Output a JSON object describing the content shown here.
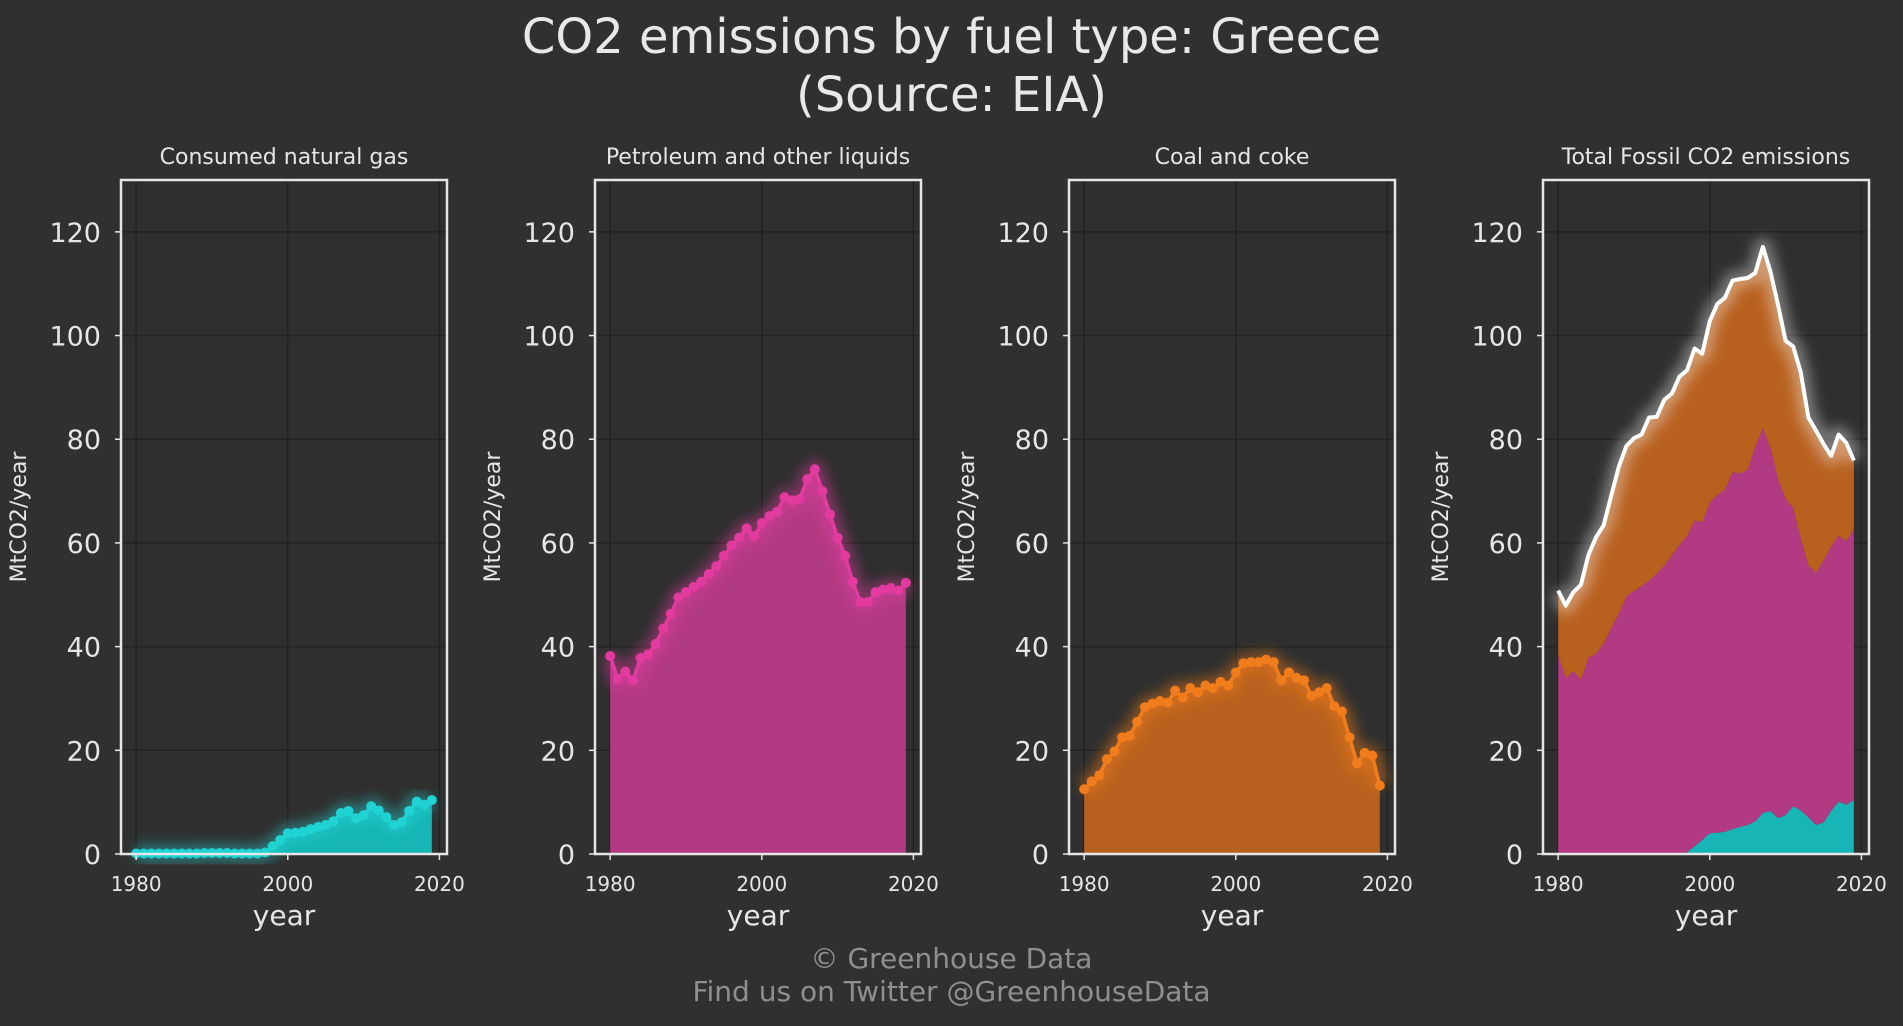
{
  "title": {
    "line1": "CO2 emissions by fuel type: Greece",
    "line2": "(Source: EIA)"
  },
  "footer": {
    "line1": "© Greenhouse Data",
    "line2": "Find us on Twitter @GreenhouseData"
  },
  "colors": {
    "background": "#303030",
    "gas": "#1fd3d3",
    "petroleum": "#e33aa0",
    "coal": "#f07c1c",
    "total": "#ffffff"
  },
  "chart_data": [
    {
      "type": "area",
      "title": "Consumed natural gas",
      "xlabel": "year",
      "ylabel": "MtCO2/year",
      "xlim": [
        1978,
        2021
      ],
      "ylim": [
        0,
        130
      ],
      "xticks": [
        1980,
        2000,
        2020
      ],
      "yticks": [
        0,
        20,
        40,
        60,
        80,
        100,
        120
      ],
      "grid": true,
      "x": [
        1980,
        1981,
        1982,
        1983,
        1984,
        1985,
        1986,
        1987,
        1988,
        1989,
        1990,
        1991,
        1992,
        1993,
        1994,
        1995,
        1996,
        1997,
        1998,
        1999,
        2000,
        2001,
        2002,
        2003,
        2004,
        2005,
        2006,
        2007,
        2008,
        2009,
        2010,
        2011,
        2012,
        2013,
        2014,
        2015,
        2016,
        2017,
        2018,
        2019
      ],
      "series": [
        {
          "key": "gas",
          "values": [
            0.1,
            0.1,
            0.1,
            0.1,
            0.1,
            0.1,
            0.1,
            0.1,
            0.1,
            0.2,
            0.2,
            0.2,
            0.2,
            0.1,
            0.1,
            0.1,
            0.1,
            0.3,
            1.5,
            2.7,
            4.0,
            4.1,
            4.3,
            4.8,
            5.2,
            5.6,
            6.3,
            7.9,
            8.3,
            6.9,
            7.5,
            9.2,
            8.4,
            7.1,
            5.6,
            6.1,
            8.3,
            10.1,
            9.5,
            10.4
          ]
        }
      ]
    },
    {
      "type": "area",
      "title": "Petroleum and other liquids",
      "xlabel": "year",
      "ylabel": "MtCO2/year",
      "xlim": [
        1978,
        2021
      ],
      "ylim": [
        0,
        130
      ],
      "xticks": [
        1980,
        2000,
        2020
      ],
      "yticks": [
        0,
        20,
        40,
        60,
        80,
        100,
        120
      ],
      "grid": true,
      "x": [
        1980,
        1981,
        1982,
        1983,
        1984,
        1985,
        1986,
        1987,
        1988,
        1989,
        1990,
        1991,
        1992,
        1993,
        1994,
        1995,
        1996,
        1997,
        1998,
        1999,
        2000,
        2001,
        2002,
        2003,
        2004,
        2005,
        2006,
        2007,
        2008,
        2009,
        2010,
        2011,
        2012,
        2013,
        2014,
        2015,
        2016,
        2017,
        2018,
        2019
      ],
      "series": [
        {
          "key": "petroleum",
          "values": [
            38.2,
            33.8,
            35.2,
            33.5,
            37.8,
            38.5,
            40.5,
            43.5,
            46.3,
            49.5,
            50.5,
            51.5,
            52.5,
            54.0,
            55.5,
            57.5,
            59.5,
            61.0,
            62.8,
            61.3,
            63.8,
            65.2,
            66.0,
            68.8,
            68.2,
            68.5,
            72.3,
            74.2,
            70.0,
            65.5,
            61.0,
            57.5,
            52.5,
            48.6,
            48.6,
            50.5,
            51.0,
            51.3,
            50.8,
            52.3
          ]
        }
      ]
    },
    {
      "type": "area",
      "title": "Coal and coke",
      "xlabel": "year",
      "ylabel": "MtCO2/year",
      "xlim": [
        1978,
        2021
      ],
      "ylim": [
        0,
        130
      ],
      "xticks": [
        1980,
        2000,
        2020
      ],
      "yticks": [
        0,
        20,
        40,
        60,
        80,
        100,
        120
      ],
      "grid": true,
      "x": [
        1980,
        1981,
        1982,
        1983,
        1984,
        1985,
        1986,
        1987,
        1988,
        1989,
        1990,
        1991,
        1992,
        1993,
        1994,
        1995,
        1996,
        1997,
        1998,
        1999,
        2000,
        2001,
        2002,
        2003,
        2004,
        2005,
        2006,
        2007,
        2008,
        2009,
        2010,
        2011,
        2012,
        2013,
        2014,
        2015,
        2016,
        2017,
        2018,
        2019
      ],
      "series": [
        {
          "key": "coal",
          "values": [
            12.5,
            14.0,
            15.2,
            18.3,
            19.8,
            22.5,
            22.8,
            25.5,
            28.3,
            29.0,
            29.5,
            29.2,
            31.5,
            30.2,
            32.0,
            31.2,
            32.5,
            32.0,
            33.2,
            32.5,
            35.0,
            36.8,
            37.0,
            37.0,
            37.5,
            37.0,
            33.5,
            35.0,
            34.0,
            33.5,
            30.5,
            31.2,
            32.0,
            28.5,
            27.5,
            22.5,
            17.5,
            19.5,
            19.0,
            13.2
          ]
        }
      ]
    },
    {
      "type": "area",
      "title": "Total Fossil CO2 emissions",
      "xlabel": "year",
      "ylabel": "MtCO2/year",
      "xlim": [
        1978,
        2021
      ],
      "ylim": [
        0,
        130
      ],
      "xticks": [
        1980,
        2000,
        2020
      ],
      "yticks": [
        0,
        20,
        40,
        60,
        80,
        100,
        120
      ],
      "grid": true,
      "stacked": true,
      "x": [
        1980,
        1981,
        1982,
        1983,
        1984,
        1985,
        1986,
        1987,
        1988,
        1989,
        1990,
        1991,
        1992,
        1993,
        1994,
        1995,
        1996,
        1997,
        1998,
        1999,
        2000,
        2001,
        2002,
        2003,
        2004,
        2005,
        2006,
        2007,
        2008,
        2009,
        2010,
        2011,
        2012,
        2013,
        2014,
        2015,
        2016,
        2017,
        2018,
        2019
      ],
      "series": [
        {
          "key": "gas",
          "values": [
            0.1,
            0.1,
            0.1,
            0.1,
            0.1,
            0.1,
            0.1,
            0.1,
            0.1,
            0.2,
            0.2,
            0.2,
            0.2,
            0.1,
            0.1,
            0.1,
            0.1,
            0.3,
            1.5,
            2.7,
            4.0,
            4.1,
            4.3,
            4.8,
            5.2,
            5.6,
            6.3,
            7.9,
            8.3,
            6.9,
            7.5,
            9.2,
            8.4,
            7.1,
            5.6,
            6.1,
            8.3,
            10.1,
            9.5,
            10.4
          ]
        },
        {
          "key": "petroleum",
          "values": [
            38.2,
            33.8,
            35.2,
            33.5,
            37.8,
            38.5,
            40.5,
            43.5,
            46.3,
            49.5,
            50.5,
            51.5,
            52.5,
            54.0,
            55.5,
            57.5,
            59.5,
            61.0,
            62.8,
            61.3,
            63.8,
            65.2,
            66.0,
            68.8,
            68.2,
            68.5,
            72.3,
            74.2,
            70.0,
            65.5,
            61.0,
            57.5,
            52.5,
            48.6,
            48.6,
            50.5,
            51.0,
            51.3,
            50.8,
            52.3
          ]
        },
        {
          "key": "coal",
          "values": [
            12.5,
            14.0,
            15.2,
            18.3,
            19.8,
            22.5,
            22.8,
            25.5,
            28.3,
            29.0,
            29.5,
            29.2,
            31.5,
            30.2,
            32.0,
            31.2,
            32.5,
            32.0,
            33.2,
            32.5,
            35.0,
            36.8,
            37.0,
            37.0,
            37.5,
            37.0,
            33.5,
            35.0,
            34.0,
            33.5,
            30.5,
            31.2,
            32.0,
            28.5,
            27.5,
            22.5,
            17.5,
            19.5,
            19.0,
            13.2
          ]
        }
      ]
    }
  ]
}
